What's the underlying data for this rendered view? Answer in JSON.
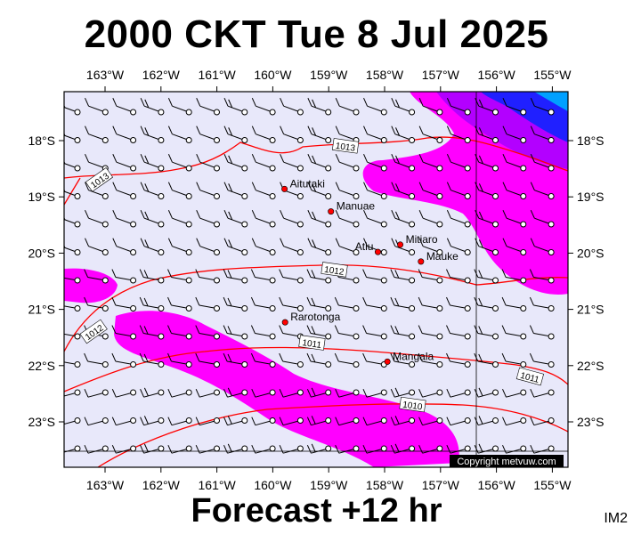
{
  "title": "2000 CKT Tue 8 Jul 2025",
  "forecast_label": "Forecast +12 hr",
  "image_code": "IM2",
  "copyright": "Copyright metvuw.com",
  "axes": {
    "lon_labels": [
      "163°W",
      "162°W",
      "161°W",
      "160°W",
      "159°W",
      "158°W",
      "157°W",
      "156°W",
      "155°W"
    ],
    "lat_labels": [
      "18°S",
      "19°S",
      "20°S",
      "21°S",
      "22°S",
      "23°S"
    ]
  },
  "places": [
    {
      "name": "Aitutaki",
      "lon": -159.79,
      "lat": -18.86
    },
    {
      "name": "Manuae",
      "lon": -158.96,
      "lat": -19.26
    },
    {
      "name": "Atiu",
      "lon": -158.12,
      "lat": -19.98
    },
    {
      "name": "Mitiaro",
      "lon": -157.72,
      "lat": -19.85
    },
    {
      "name": "Mauke",
      "lon": -157.35,
      "lat": -20.15
    },
    {
      "name": "Rarotonga",
      "lon": -159.78,
      "lat": -21.23
    },
    {
      "name": "Mangala",
      "lon": -157.95,
      "lat": -21.93
    }
  ],
  "isobars": [
    {
      "label": "1013",
      "lon": -158.7,
      "lat": -18.1
    },
    {
      "label": "1013",
      "lon": -163.1,
      "lat": -18.7
    },
    {
      "label": "1012",
      "lon": -158.9,
      "lat": -20.3
    },
    {
      "label": "1012",
      "lon": -163.2,
      "lat": -21.4
    },
    {
      "label": "1011",
      "lon": -159.3,
      "lat": -21.6
    },
    {
      "label": "1011",
      "lon": -155.4,
      "lat": -22.2
    },
    {
      "label": "1010",
      "lon": -157.5,
      "lat": -22.7
    }
  ],
  "colors": {
    "background": "#e8e8fa",
    "rain_magenta": "#ff00ff",
    "rain_purple": "#b300ff",
    "rain_blue": "#2020ff",
    "rain_cyan": "#00a0ff",
    "isobar": "#ff0000",
    "place_marker": "#ff0000"
  }
}
